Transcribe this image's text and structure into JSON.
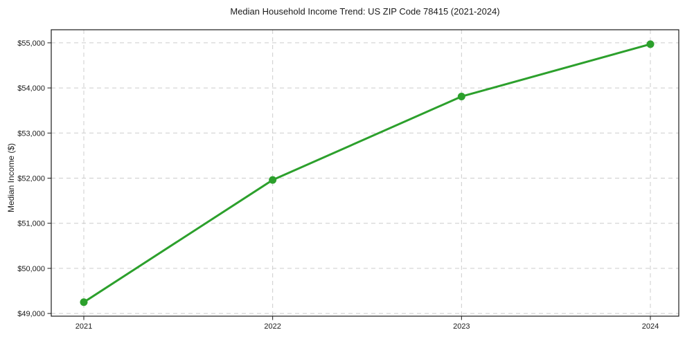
{
  "chart_data": {
    "type": "line",
    "title": "Median Household Income Trend: US ZIP Code 78415 (2021-2024)",
    "xlabel": "",
    "ylabel": "Median Income ($)",
    "categories": [
      "2021",
      "2022",
      "2023",
      "2024"
    ],
    "series": [
      {
        "name": "Median Household Income",
        "values": [
          49250,
          51960,
          53810,
          54970
        ]
      }
    ],
    "y_ticks": [
      49000,
      50000,
      51000,
      52000,
      53000,
      54000,
      55000
    ],
    "y_tick_labels": [
      "$49,000",
      "$50,000",
      "$51,000",
      "$52,000",
      "$53,000",
      "$54,000",
      "$55,000"
    ],
    "ylim": [
      48940,
      55290
    ],
    "grid": "on",
    "grid_style": "dashed",
    "legend_position": "none",
    "line_color": "#2ca02c",
    "marker": "circle",
    "marker_color": "#2ca02c",
    "grid_color": "#cccccc",
    "spine_color": "#1a1a1a",
    "background_color": "#ffffff"
  }
}
